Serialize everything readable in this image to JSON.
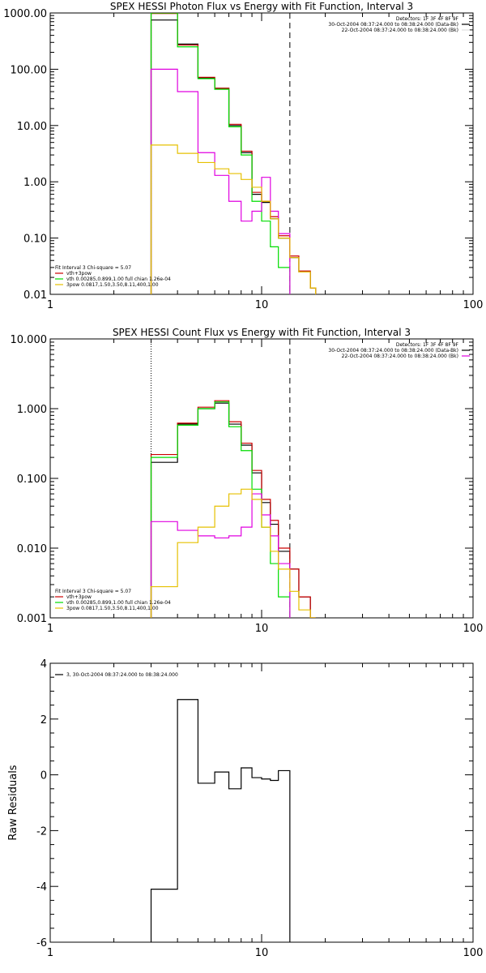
{
  "figure": "SPEX HESSI spectral fit output",
  "chart_data": [
    {
      "type": "line",
      "step": true,
      "log_x": true,
      "log_y": true,
      "title": "SPEX HESSI Photon Flux vs Energy with Fit Function, Interval 3",
      "xlabel": "",
      "ylabel": "",
      "xlim": [
        1,
        100
      ],
      "ylim": [
        0.01,
        1000
      ],
      "xticks": [
        {
          "v": 1,
          "label": "1"
        },
        {
          "v": 10,
          "label": "10"
        },
        {
          "v": 100,
          "label": "100"
        }
      ],
      "yticks": [
        {
          "v": 0.01,
          "label": "0.01"
        },
        {
          "v": 0.1,
          "label": "0.10"
        },
        {
          "v": 1,
          "label": "1.00"
        },
        {
          "v": 10,
          "label": "10.00"
        },
        {
          "v": 100,
          "label": "100.00"
        },
        {
          "v": 1000,
          "label": "1000.00"
        }
      ],
      "header_text": [
        "Detectors: 1F 3F 4F 8F 9F",
        "30-Oct-2004 08:37:24.000 to 08:38:24.000 (Data-Bk)",
        "22-Oct-2004 08:37:24.000 to 08:38:24.000 (Bk)"
      ],
      "header_colors": [
        "",
        "#000000",
        "#e0e0e0"
      ],
      "fit_text": [
        "Fit Interval 3   Chi-square = 5.07",
        "vth+3pow",
        "vth 0.00285,0.899,1.00   full chian 1.26e-04",
        "3pow 0.0817,1.50,3.50,8.11,400,1.00"
      ],
      "fit_colors": [
        "#000000",
        "#cc0000",
        "#00dd00",
        "#e6c000"
      ],
      "vlines": [
        {
          "x": 3.0,
          "style": "dotted"
        },
        {
          "x": 13.6,
          "style": "dashed"
        }
      ],
      "series": [
        {
          "color": "#000000",
          "edges": [
            3,
            4,
            5,
            6,
            7,
            8,
            9,
            10,
            11,
            12,
            13.6,
            15,
            17,
            18
          ],
          "values": [
            750,
            280,
            70,
            46,
            10,
            3.3,
            0.6,
            0.43,
            0.22,
            0.1,
            0.045,
            0.025,
            0.013
          ]
        },
        {
          "color": "#cc0000",
          "edges": [
            3,
            4,
            5,
            6,
            7,
            8,
            9,
            10,
            11,
            12,
            13.6,
            15,
            17,
            18
          ],
          "values": [
            980,
            270,
            72,
            46,
            10.5,
            3.5,
            0.65,
            0.45,
            0.24,
            0.11,
            0.048,
            0.026,
            0.013
          ]
        },
        {
          "color": "#00dd00",
          "edges": [
            3,
            4,
            5,
            6,
            7,
            8,
            9,
            10,
            11,
            12,
            13.6
          ],
          "values": [
            1000,
            250,
            68,
            44,
            9.5,
            3,
            0.45,
            0.2,
            0.07,
            0.03
          ]
        },
        {
          "color": "#e000e0",
          "edges": [
            3,
            4,
            5,
            6,
            7,
            8,
            9,
            10,
            11,
            12,
            13.6
          ],
          "values": [
            100,
            40,
            3.3,
            1.3,
            0.45,
            0.2,
            0.3,
            1.2,
            0.3,
            0.12
          ]
        },
        {
          "color": "#e6c000",
          "edges": [
            3,
            4,
            5,
            6,
            7,
            8,
            9,
            10,
            11,
            12,
            13.6,
            15,
            17,
            18
          ],
          "values": [
            4.5,
            3.2,
            2.2,
            1.7,
            1.4,
            1.1,
            0.8,
            0.45,
            0.22,
            0.1,
            0.045,
            0.025,
            0.013
          ]
        }
      ]
    },
    {
      "type": "line",
      "step": true,
      "log_x": true,
      "log_y": true,
      "title": "SPEX HESSI Count Flux vs Energy with Fit Function, Interval 3",
      "xlabel": "",
      "ylabel": "",
      "xlim": [
        1,
        100
      ],
      "ylim": [
        0.001,
        10
      ],
      "xticks": [
        {
          "v": 1,
          "label": "1"
        },
        {
          "v": 10,
          "label": "10"
        },
        {
          "v": 100,
          "label": "100"
        }
      ],
      "yticks": [
        {
          "v": 0.001,
          "label": "0.001"
        },
        {
          "v": 0.01,
          "label": "0.010"
        },
        {
          "v": 0.1,
          "label": "0.100"
        },
        {
          "v": 1,
          "label": "1.000"
        },
        {
          "v": 10,
          "label": "10.000"
        }
      ],
      "header_text": [
        "Detectors: 1F 3F 4F 8F 9F",
        "30-Oct-2004 08:37:24.000 to 08:38:24.000 (Data-Bk)",
        "22-Oct-2004 08:37:24.000 to 08:38:24.000 (Bk)"
      ],
      "header_colors": [
        "",
        "#000000",
        "#e000e0"
      ],
      "fit_text": [
        "Fit Interval 3   Chi-square = 5.07",
        "vth+3pow",
        "vth 0.00285,0.899,1.00   full chian 1.26e-04",
        "3pow 0.0817,1.50,3.50,8.11,400,1.00"
      ],
      "fit_colors": [
        "#000000",
        "#cc0000",
        "#00dd00",
        "#e6c000"
      ],
      "vlines": [
        {
          "x": 3.0,
          "style": "dotted"
        },
        {
          "x": 13.6,
          "style": "dashed"
        }
      ],
      "series": [
        {
          "color": "#000000",
          "edges": [
            3,
            4,
            5,
            6,
            7,
            8,
            9,
            10,
            11,
            12,
            13.6,
            15,
            17,
            18
          ],
          "values": [
            0.17,
            0.6,
            1.0,
            1.2,
            0.6,
            0.3,
            0.12,
            0.045,
            0.022,
            0.009,
            0.005,
            0.002,
            0.001
          ]
        },
        {
          "color": "#cc0000",
          "edges": [
            3,
            4,
            5,
            6,
            7,
            8,
            9,
            10,
            11,
            12,
            13.6,
            15,
            17,
            18
          ],
          "values": [
            0.22,
            0.62,
            1.05,
            1.3,
            0.65,
            0.32,
            0.13,
            0.05,
            0.025,
            0.01,
            0.005,
            0.002,
            0.001
          ]
        },
        {
          "color": "#00dd00",
          "edges": [
            3,
            4,
            5,
            6,
            7,
            8,
            9,
            10,
            11,
            12,
            13.6
          ],
          "values": [
            0.2,
            0.58,
            1.0,
            1.25,
            0.55,
            0.25,
            0.07,
            0.02,
            0.006,
            0.002
          ]
        },
        {
          "color": "#e000e0",
          "edges": [
            3,
            4,
            5,
            6,
            7,
            8,
            9,
            10,
            11,
            12,
            13.6
          ],
          "values": [
            0.024,
            0.018,
            0.015,
            0.014,
            0.015,
            0.02,
            0.06,
            0.03,
            0.015,
            0.006
          ]
        },
        {
          "color": "#e6c000",
          "edges": [
            3,
            4,
            5,
            6,
            7,
            8,
            9,
            10,
            11,
            12,
            13.6,
            15,
            17,
            18
          ],
          "values": [
            0.0028,
            0.012,
            0.02,
            0.04,
            0.06,
            0.07,
            0.05,
            0.02,
            0.009,
            0.005,
            0.0024,
            0.0013,
            0.001
          ]
        }
      ]
    },
    {
      "type": "line",
      "step": true,
      "log_x": true,
      "log_y": false,
      "title": "",
      "xlabel": "",
      "ylabel": "Raw Residuals",
      "xlim": [
        1,
        100
      ],
      "ylim": [
        -6,
        4
      ],
      "xticks": [
        {
          "v": 1,
          "label": "1"
        },
        {
          "v": 10,
          "label": "10"
        },
        {
          "v": 100,
          "label": "100"
        }
      ],
      "yticks": [
        {
          "v": -6,
          "label": "-6"
        },
        {
          "v": -4,
          "label": "-4"
        },
        {
          "v": -2,
          "label": "-2"
        },
        {
          "v": 0,
          "label": "0"
        },
        {
          "v": 2,
          "label": "2"
        },
        {
          "v": 4,
          "label": "4"
        }
      ],
      "legend": "3, 30-Oct-2004 08:37:24.000 to 08:38:24.000",
      "series": [
        {
          "color": "#000000",
          "edges": [
            3,
            4,
            5,
            6,
            7,
            8,
            9,
            10,
            11,
            12,
            13.6
          ],
          "values": [
            -4.1,
            2.7,
            -0.3,
            0.1,
            -0.5,
            0.25,
            -0.1,
            -0.15,
            -0.2,
            0.15
          ]
        }
      ]
    }
  ]
}
